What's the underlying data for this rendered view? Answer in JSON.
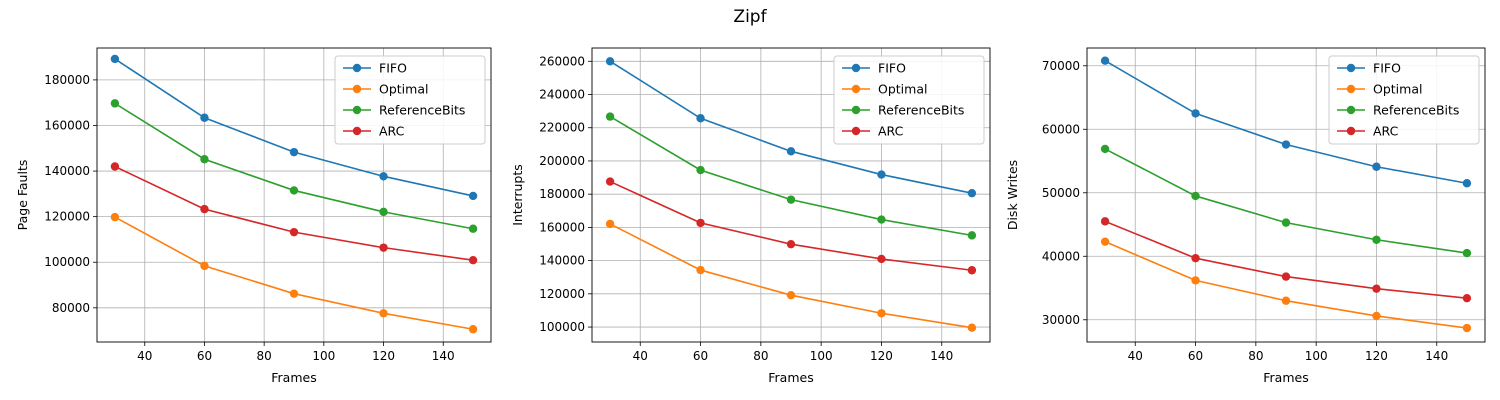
{
  "figure": {
    "title": "Zipf"
  },
  "colors": {
    "FIFO": "#1f77b4",
    "Optimal": "#ff7f0e",
    "ReferenceBits": "#2ca02c",
    "ARC": "#d62728",
    "grid": "#b0b0b0"
  },
  "chart_data": [
    {
      "type": "line",
      "xlabel": "Frames",
      "ylabel": "Page Faults",
      "x": [
        30,
        60,
        90,
        120,
        150
      ],
      "xlim": [
        24,
        156
      ],
      "ylim": [
        65000,
        194000
      ],
      "xticks": [
        40,
        60,
        80,
        100,
        120,
        140
      ],
      "yticks": [
        80000,
        100000,
        120000,
        140000,
        160000,
        180000
      ],
      "grid": true,
      "legend_position": "top-right",
      "series": [
        {
          "name": "FIFO",
          "values": [
            189200,
            163400,
            148300,
            137700,
            129100
          ]
        },
        {
          "name": "Optimal",
          "values": [
            119800,
            98400,
            86200,
            77600,
            70600
          ]
        },
        {
          "name": "ReferenceBits",
          "values": [
            169700,
            145200,
            131500,
            122100,
            114700
          ]
        },
        {
          "name": "ARC",
          "values": [
            142000,
            123300,
            113200,
            106400,
            100900
          ]
        }
      ]
    },
    {
      "type": "line",
      "xlabel": "Frames",
      "ylabel": "Interrupts",
      "x": [
        30,
        60,
        90,
        120,
        150
      ],
      "xlim": [
        24,
        156
      ],
      "ylim": [
        91000,
        268000
      ],
      "xticks": [
        40,
        60,
        80,
        100,
        120,
        140
      ],
      "yticks": [
        100000,
        120000,
        140000,
        160000,
        180000,
        200000,
        220000,
        240000,
        260000
      ],
      "grid": true,
      "legend_position": "top-right",
      "series": [
        {
          "name": "FIFO",
          "values": [
            260000,
            225700,
            205800,
            191800,
            180600
          ]
        },
        {
          "name": "Optimal",
          "values": [
            162100,
            134300,
            119200,
            108300,
            99600
          ]
        },
        {
          "name": "ReferenceBits",
          "values": [
            226700,
            194500,
            176700,
            164700,
            155200
          ]
        },
        {
          "name": "ARC",
          "values": [
            187600,
            162700,
            149900,
            141000,
            134200
          ]
        }
      ]
    },
    {
      "type": "line",
      "xlabel": "Frames",
      "ylabel": "Disk Writes",
      "x": [
        30,
        60,
        90,
        120,
        150
      ],
      "xlim": [
        24,
        156
      ],
      "ylim": [
        26500,
        72800
      ],
      "xticks": [
        40,
        60,
        80,
        100,
        120,
        140
      ],
      "yticks": [
        30000,
        40000,
        50000,
        60000,
        70000
      ],
      "grid": true,
      "legend_position": "top-right",
      "series": [
        {
          "name": "FIFO",
          "values": [
            70800,
            62500,
            57600,
            54100,
            51500
          ]
        },
        {
          "name": "Optimal",
          "values": [
            42300,
            36200,
            33000,
            30600,
            28700
          ]
        },
        {
          "name": "ReferenceBits",
          "values": [
            56900,
            49500,
            45300,
            42600,
            40500
          ]
        },
        {
          "name": "ARC",
          "values": [
            45500,
            39700,
            36800,
            34900,
            33400
          ]
        }
      ]
    }
  ]
}
